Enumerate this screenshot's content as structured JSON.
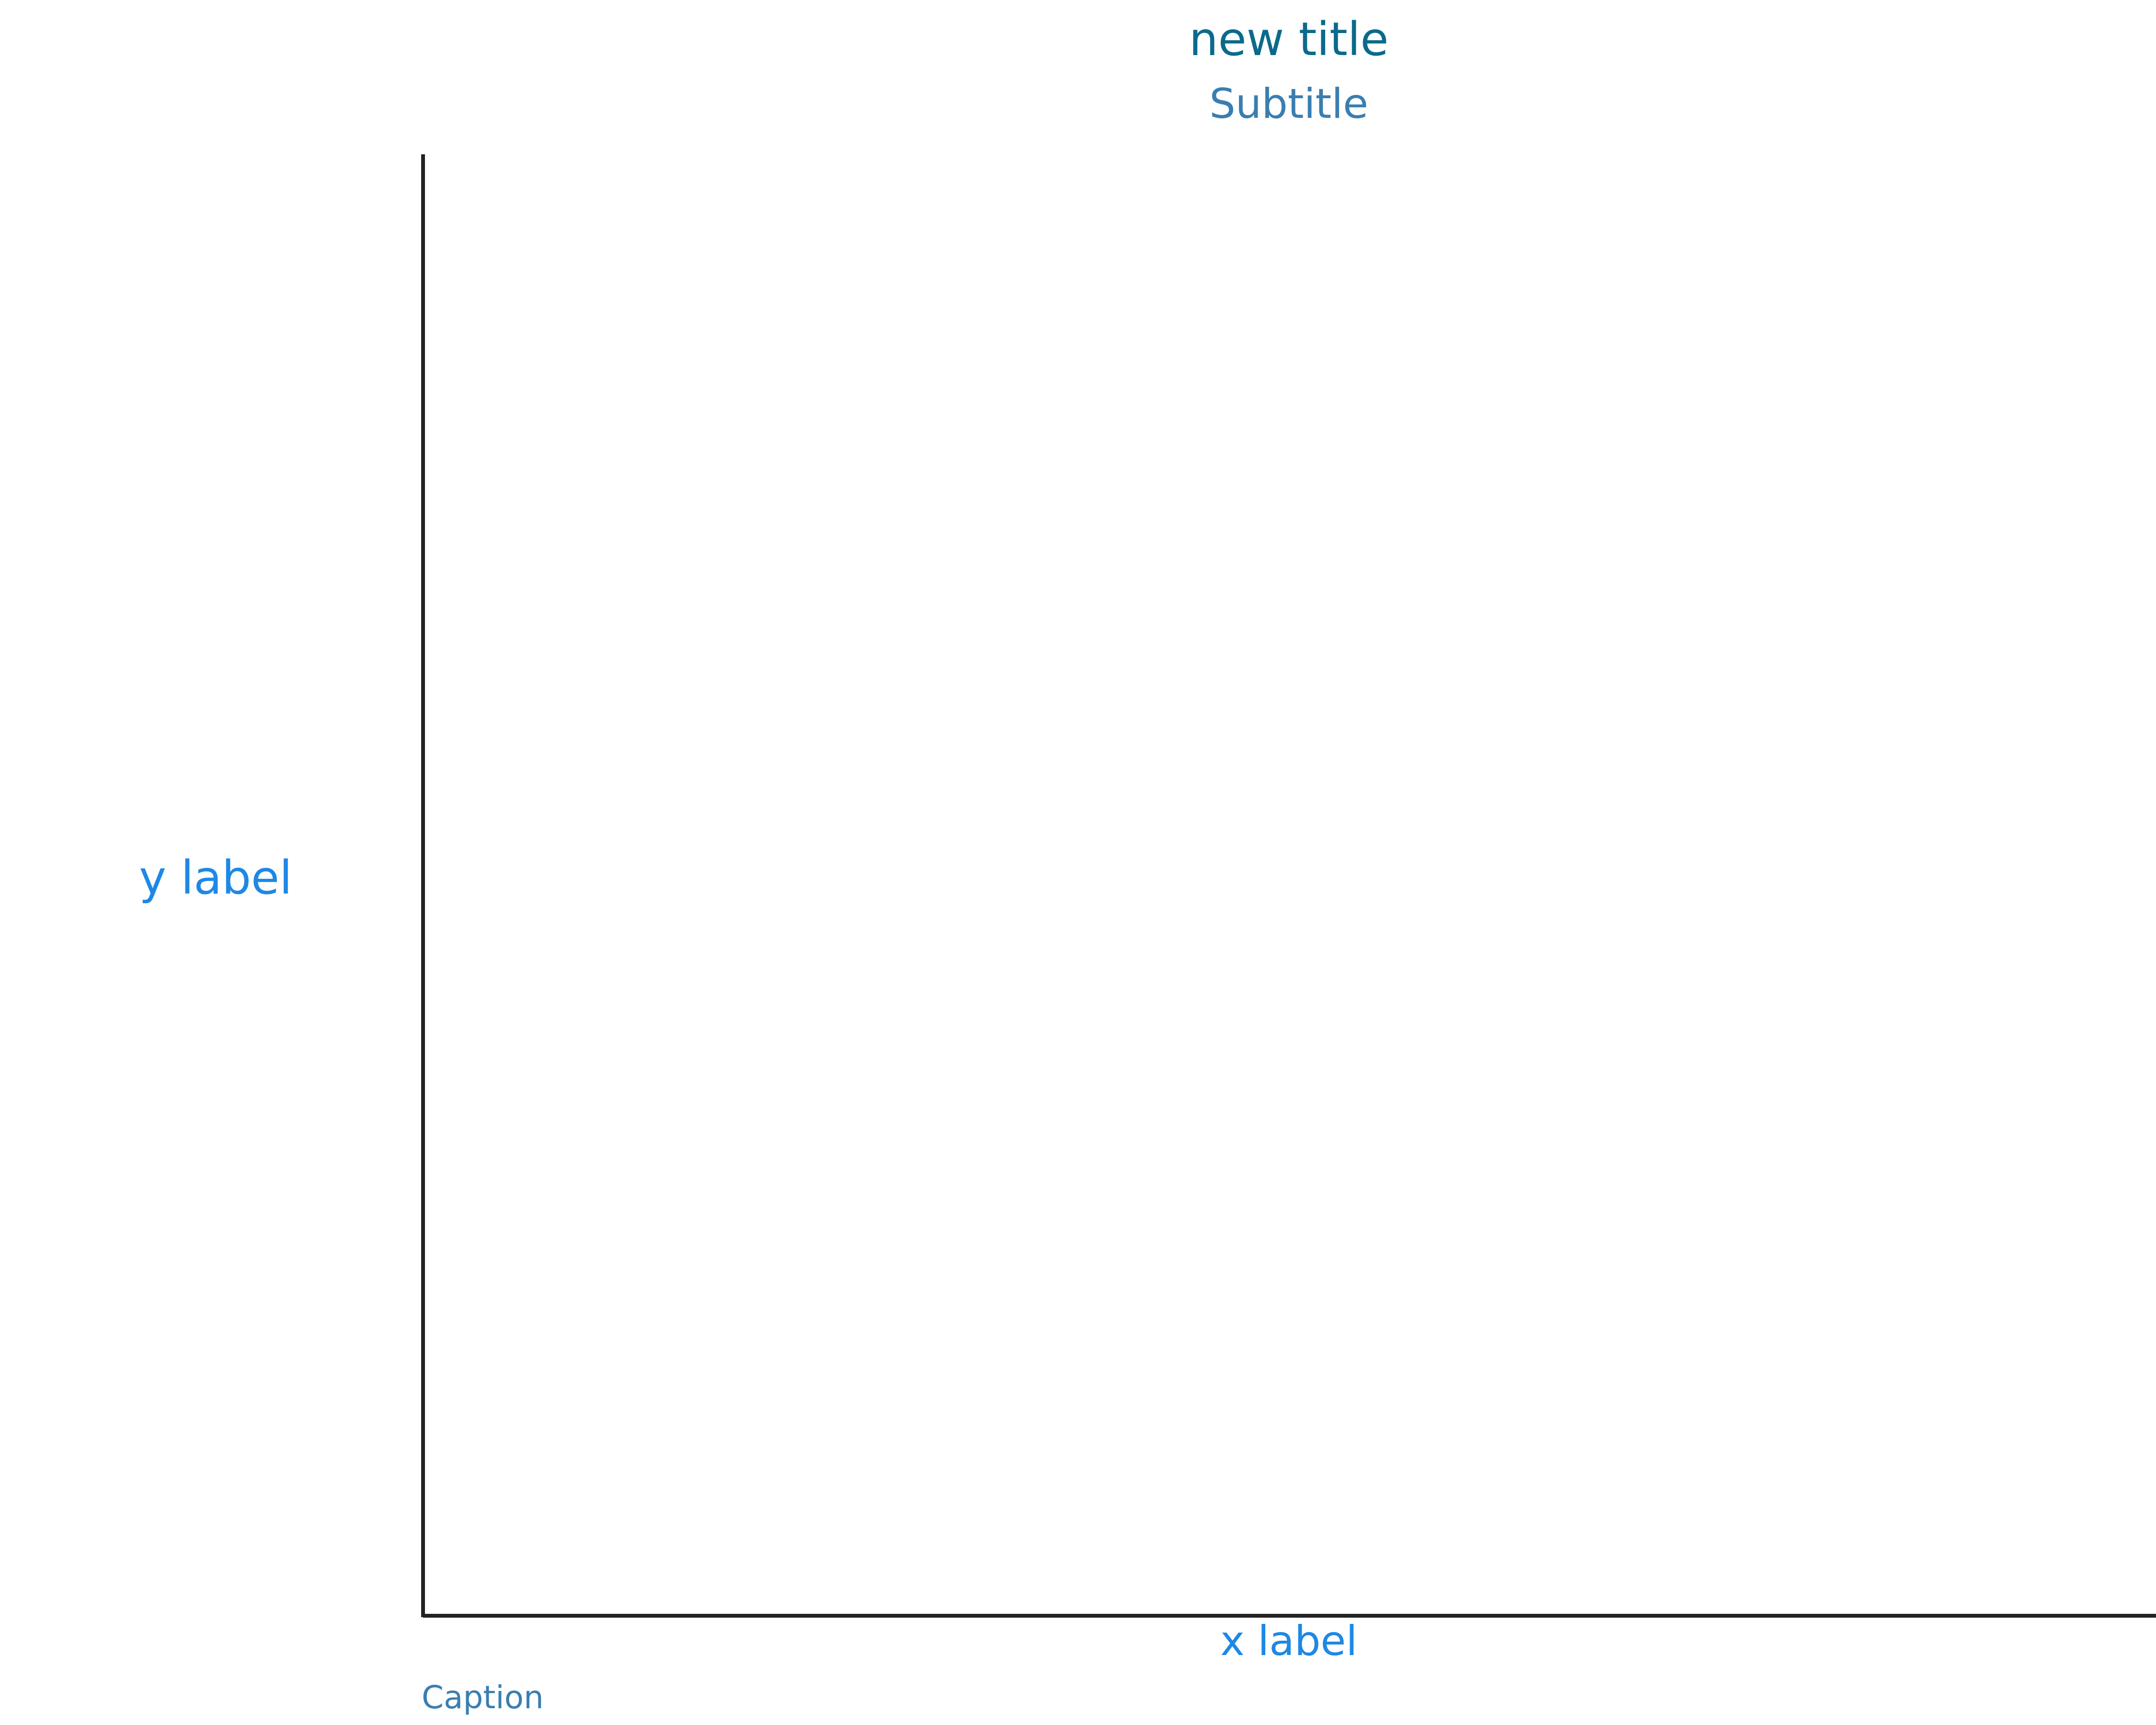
{
  "chart_data": {
    "type": "scatter",
    "title": "new title",
    "subtitle": "Subtitle",
    "xlabel": "x label",
    "ylabel": "y label",
    "caption": "Caption",
    "series": [],
    "grid": false,
    "legend": "none",
    "colors": {
      "title": "#0b6a8c",
      "subtitle": "#3a7eb0",
      "axis_label": "#1e88e5",
      "caption": "#3a7eb0",
      "axis_line": "#222222"
    }
  }
}
